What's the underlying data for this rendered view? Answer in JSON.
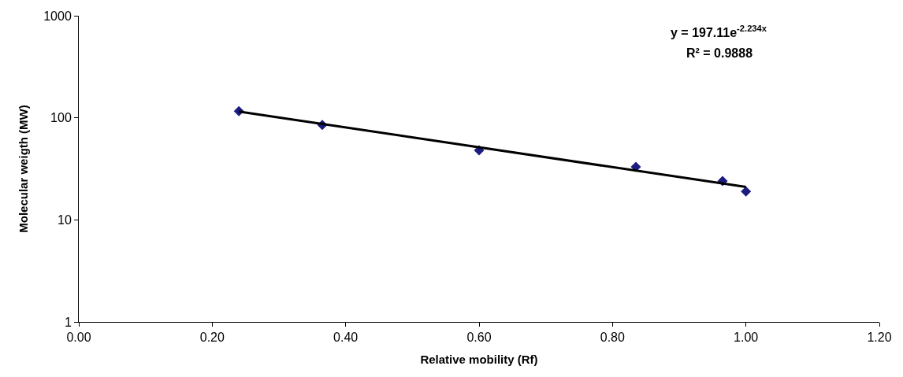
{
  "chart_data": {
    "type": "scatter",
    "xlabel": "Relative mobility (Rf)",
    "ylabel": "Molecular weigth (MW)",
    "log": "y",
    "x": [
      0.24,
      0.365,
      0.6,
      0.835,
      0.965,
      1.0
    ],
    "series": [
      {
        "color": "#1c1c80",
        "marker": "diamond",
        "values": [
          116,
          85,
          48,
          33,
          24,
          19
        ]
      },
      {
        "type": "line",
        "color": "#000000",
        "x": [
          0.24,
          1.0
        ],
        "values": [
          115,
          21
        ],
        "line_style": "solid"
      }
    ],
    "xlim": [
      0,
      1.2
    ],
    "xticks": [
      {
        "value": 0,
        "label": "0.00"
      },
      {
        "value": 0.2,
        "label": "0.20"
      },
      {
        "value": 0.4,
        "label": "0.40"
      },
      {
        "value": 0.6,
        "label": "0.60"
      },
      {
        "value": 0.8,
        "label": "0.80"
      },
      {
        "value": 1.0,
        "label": "1.00"
      },
      {
        "value": 1.2,
        "label": "1.20"
      }
    ],
    "ylim": [
      1,
      1000
    ],
    "yticks": [
      1,
      10,
      100,
      1000
    ],
    "annotations": [
      "y = 197.11e$^{-2.234x}$",
      "R² = 0.9888"
    ],
    "grid": false,
    "legend": false
  }
}
